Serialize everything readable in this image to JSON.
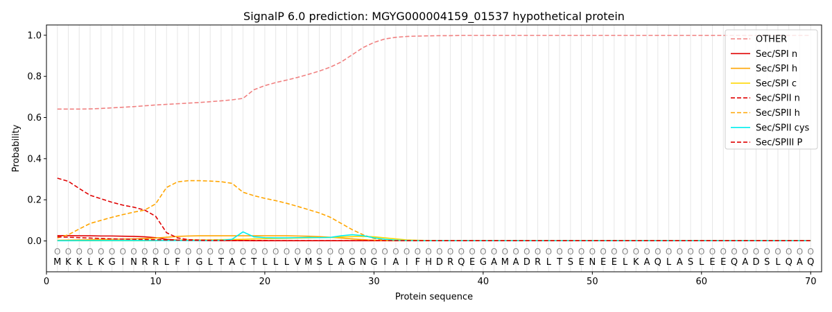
{
  "chart_data": {
    "type": "line",
    "title": "SignalP 6.0 prediction: MGYG000004159_01537 hypothetical protein",
    "xlabel": "Protein sequence",
    "ylabel": "Probability",
    "xlim": [
      0,
      71
    ],
    "ylim": [
      -0.15,
      1.05
    ],
    "x_ticks": [
      0,
      10,
      20,
      30,
      40,
      50,
      60,
      70
    ],
    "y_ticks": [
      0.0,
      0.2,
      0.4,
      0.6,
      0.8,
      1.0
    ],
    "grid": "vertical lines at each residue",
    "legend_position": "top-right",
    "sequence": [
      "M",
      "K",
      "K",
      "L",
      "K",
      "G",
      "I",
      "N",
      "R",
      "R",
      "L",
      "F",
      "I",
      "G",
      "L",
      "T",
      "A",
      "C",
      "T",
      "L",
      "L",
      "L",
      "V",
      "M",
      "S",
      "L",
      "A",
      "G",
      "N",
      "G",
      "I",
      "A",
      "I",
      "F",
      "H",
      "D",
      "R",
      "Q",
      "E",
      "G",
      "A",
      "M",
      "A",
      "D",
      "R",
      "L",
      "T",
      "S",
      "E",
      "N",
      "E",
      "E",
      "L",
      "K",
      "A",
      "Q",
      "L",
      "A",
      "S",
      "L",
      "E",
      "E",
      "Q",
      "A",
      "D",
      "S",
      "L",
      "Q",
      "A",
      "Q"
    ],
    "region_labels": [
      "O",
      "O",
      "O",
      "O",
      "O",
      "O",
      "O",
      "O",
      "O",
      "O",
      "O",
      "O",
      "O",
      "O",
      "O",
      "O",
      "O",
      "O",
      "O",
      "O",
      "O",
      "O",
      "O",
      "O",
      "O",
      "O",
      "O",
      "O",
      "O",
      "O",
      "O",
      "O",
      "O",
      "O",
      "O",
      "O",
      "O",
      "O",
      "O",
      "O",
      "O",
      "O",
      "O",
      "O",
      "O",
      "O",
      "O",
      "O",
      "O",
      "O",
      "O",
      "O",
      "O",
      "O",
      "O",
      "O",
      "O",
      "O",
      "O",
      "O",
      "O",
      "O",
      "O",
      "O",
      "O",
      "O",
      "O",
      "O",
      "O",
      "O"
    ],
    "series": [
      {
        "name": "OTHER",
        "color": "#f08080",
        "dash": true,
        "values": [
          0.641,
          0.641,
          0.641,
          0.642,
          0.644,
          0.647,
          0.65,
          0.653,
          0.657,
          0.661,
          0.664,
          0.667,
          0.67,
          0.673,
          0.677,
          0.681,
          0.686,
          0.693,
          0.735,
          0.755,
          0.77,
          0.782,
          0.795,
          0.81,
          0.826,
          0.845,
          0.87,
          0.905,
          0.94,
          0.965,
          0.982,
          0.99,
          0.994,
          0.996,
          0.997,
          0.998,
          0.998,
          0.999,
          0.999,
          0.999,
          0.999,
          0.999,
          0.999,
          0.999,
          0.999,
          0.999,
          0.999,
          0.999,
          0.999,
          0.999,
          0.999,
          0.999,
          0.999,
          0.999,
          0.999,
          0.999,
          0.999,
          0.999,
          0.999,
          0.999,
          0.999,
          0.999,
          0.999,
          0.999,
          0.999,
          0.999,
          0.999,
          0.999,
          0.999,
          0.999
        ]
      },
      {
        "name": "Sec/SPI n",
        "color": "#e00000",
        "dash": false,
        "values": [
          0.026,
          0.026,
          0.025,
          0.025,
          0.024,
          0.024,
          0.023,
          0.022,
          0.02,
          0.016,
          0.008,
          0.004,
          0.003,
          0.002,
          0.002,
          0.002,
          0.002,
          0.002,
          0.001,
          0.001,
          0.001,
          0.001,
          0.001,
          0.001,
          0.001,
          0.001,
          0.001,
          0.001,
          0.001,
          0.001,
          0.001,
          0.001,
          0.001,
          0.001,
          0.001,
          0.001,
          0.001,
          0.001,
          0.001,
          0.001,
          0.001,
          0.001,
          0.001,
          0.001,
          0.001,
          0.001,
          0.001,
          0.001,
          0.001,
          0.001,
          0.001,
          0.001,
          0.001,
          0.001,
          0.001,
          0.001,
          0.001,
          0.001,
          0.001,
          0.001,
          0.001,
          0.001,
          0.001,
          0.001,
          0.001,
          0.001,
          0.001,
          0.001,
          0.001,
          0.001
        ]
      },
      {
        "name": "Sec/SPI h",
        "color": "#ffa500",
        "dash": false,
        "values": [
          0.003,
          0.004,
          0.005,
          0.006,
          0.007,
          0.008,
          0.009,
          0.01,
          0.012,
          0.014,
          0.018,
          0.022,
          0.024,
          0.025,
          0.025,
          0.025,
          0.025,
          0.025,
          0.025,
          0.025,
          0.025,
          0.025,
          0.024,
          0.023,
          0.021,
          0.018,
          0.014,
          0.01,
          0.006,
          0.003,
          0.002,
          0.001,
          0.001,
          0.001,
          0.001,
          0.001,
          0.001,
          0.001,
          0.001,
          0.001,
          0.001,
          0.001,
          0.001,
          0.001,
          0.001,
          0.001,
          0.001,
          0.001,
          0.001,
          0.001,
          0.001,
          0.001,
          0.001,
          0.001,
          0.001,
          0.001,
          0.001,
          0.001,
          0.001,
          0.001,
          0.001,
          0.001,
          0.001,
          0.001,
          0.001,
          0.001,
          0.001,
          0.001,
          0.001,
          0.001
        ]
      },
      {
        "name": "Sec/SPI c",
        "color": "#ffd700",
        "dash": false,
        "values": [
          0.001,
          0.001,
          0.001,
          0.001,
          0.001,
          0.001,
          0.001,
          0.001,
          0.001,
          0.002,
          0.003,
          0.004,
          0.005,
          0.005,
          0.005,
          0.006,
          0.007,
          0.008,
          0.01,
          0.011,
          0.012,
          0.013,
          0.014,
          0.015,
          0.016,
          0.017,
          0.019,
          0.021,
          0.022,
          0.02,
          0.015,
          0.01,
          0.005,
          0.003,
          0.002,
          0.001,
          0.001,
          0.001,
          0.001,
          0.001,
          0.001,
          0.001,
          0.001,
          0.001,
          0.001,
          0.001,
          0.001,
          0.001,
          0.001,
          0.001,
          0.001,
          0.001,
          0.001,
          0.001,
          0.001,
          0.001,
          0.001,
          0.001,
          0.001,
          0.001,
          0.001,
          0.001,
          0.001,
          0.001,
          0.001,
          0.001,
          0.001,
          0.001,
          0.001,
          0.001
        ]
      },
      {
        "name": "Sec/SPII n",
        "color": "#e00000",
        "dash": true,
        "values": [
          0.305,
          0.29,
          0.255,
          0.222,
          0.205,
          0.188,
          0.174,
          0.164,
          0.15,
          0.12,
          0.04,
          0.015,
          0.006,
          0.004,
          0.003,
          0.003,
          0.002,
          0.002,
          0.002,
          0.002,
          0.001,
          0.001,
          0.001,
          0.001,
          0.001,
          0.001,
          0.001,
          0.001,
          0.001,
          0.001,
          0.001,
          0.001,
          0.001,
          0.001,
          0.001,
          0.001,
          0.001,
          0.001,
          0.001,
          0.001,
          0.001,
          0.001,
          0.001,
          0.001,
          0.001,
          0.001,
          0.001,
          0.001,
          0.001,
          0.001,
          0.001,
          0.001,
          0.001,
          0.001,
          0.001,
          0.001,
          0.001,
          0.001,
          0.001,
          0.001,
          0.001,
          0.001,
          0.001,
          0.001,
          0.001,
          0.001,
          0.001,
          0.001,
          0.001,
          0.001
        ]
      },
      {
        "name": "Sec/SPII h",
        "color": "#ffa500",
        "dash": true,
        "values": [
          0.015,
          0.03,
          0.058,
          0.085,
          0.1,
          0.115,
          0.128,
          0.14,
          0.15,
          0.18,
          0.26,
          0.287,
          0.293,
          0.293,
          0.291,
          0.288,
          0.28,
          0.237,
          0.22,
          0.207,
          0.196,
          0.183,
          0.168,
          0.152,
          0.136,
          0.115,
          0.085,
          0.055,
          0.03,
          0.012,
          0.004,
          0.002,
          0.001,
          0.001,
          0.001,
          0.001,
          0.001,
          0.001,
          0.001,
          0.001,
          0.001,
          0.001,
          0.001,
          0.001,
          0.001,
          0.001,
          0.001,
          0.001,
          0.001,
          0.001,
          0.001,
          0.001,
          0.001,
          0.001,
          0.001,
          0.001,
          0.001,
          0.001,
          0.001,
          0.001,
          0.001,
          0.001,
          0.001,
          0.001,
          0.001,
          0.001,
          0.001,
          0.001,
          0.001,
          0.001
        ]
      },
      {
        "name": "Sec/SPII cys",
        "color": "#00eeee",
        "dash": false,
        "values": [
          0.001,
          0.001,
          0.002,
          0.002,
          0.002,
          0.002,
          0.002,
          0.002,
          0.002,
          0.002,
          0.002,
          0.002,
          0.002,
          0.002,
          0.002,
          0.003,
          0.008,
          0.044,
          0.02,
          0.016,
          0.015,
          0.015,
          0.016,
          0.017,
          0.016,
          0.017,
          0.025,
          0.03,
          0.026,
          0.015,
          0.008,
          0.004,
          0.002,
          0.001,
          0.001,
          0.001,
          0.001,
          0.001,
          0.001,
          0.001,
          0.001,
          0.001,
          0.001,
          0.001,
          0.001,
          0.001,
          0.001,
          0.001,
          0.001,
          0.001,
          0.001,
          0.001,
          0.001,
          0.001,
          0.001,
          0.001,
          0.001,
          0.001,
          0.001,
          0.001,
          0.001,
          0.001,
          0.001,
          0.001,
          0.001,
          0.001,
          0.001,
          0.001,
          0.001,
          0.001
        ]
      },
      {
        "name": "Sec/SPIII P",
        "color": "#e00000",
        "dash": true,
        "values": [
          0.02,
          0.018,
          0.016,
          0.014,
          0.012,
          0.01,
          0.009,
          0.008,
          0.007,
          0.006,
          0.005,
          0.004,
          0.003,
          0.003,
          0.002,
          0.002,
          0.002,
          0.002,
          0.001,
          0.001,
          0.001,
          0.001,
          0.001,
          0.001,
          0.001,
          0.001,
          0.001,
          0.001,
          0.001,
          0.001,
          0.001,
          0.001,
          0.001,
          0.001,
          0.001,
          0.001,
          0.001,
          0.001,
          0.001,
          0.001,
          0.001,
          0.001,
          0.001,
          0.001,
          0.001,
          0.001,
          0.001,
          0.001,
          0.001,
          0.001,
          0.001,
          0.001,
          0.001,
          0.001,
          0.001,
          0.001,
          0.001,
          0.001,
          0.001,
          0.001,
          0.001,
          0.001,
          0.001,
          0.001,
          0.001,
          0.001,
          0.001,
          0.001,
          0.001,
          0.001
        ]
      }
    ]
  }
}
